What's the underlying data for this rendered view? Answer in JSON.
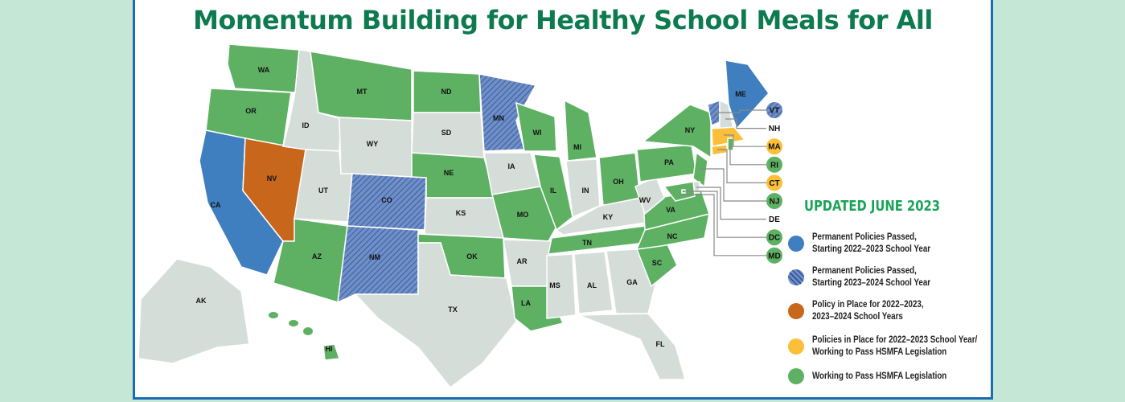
{
  "title": "Momentum Building for Healthy School Meals for All",
  "updated": "UPDATED JUNE 2023",
  "colors": {
    "blue": "#3f7ebf",
    "blue_hatched": "#6f8fc9",
    "orange": "#c8661c",
    "yellow": "#fbbf3a",
    "green": "#5eb163",
    "none": "#d5ddd9",
    "frame": "#1a6cb3",
    "title": "#0d7a4f"
  },
  "legend": [
    {
      "status": "blue",
      "label": "Permanent Policies Passed,\nStarting 2022–2023 School Year"
    },
    {
      "status": "blue_hatched",
      "label": "Permanent Policies Passed,\nStarting 2023–2024 School Year"
    },
    {
      "status": "orange",
      "label": "Policy in Place for 2022–2023,\n2023–2024 School Years"
    },
    {
      "status": "yellow",
      "label": "Policies in Place for 2022–2023 School Year/\nWorking to Pass HSMFA Legislation"
    },
    {
      "status": "green",
      "label": "Working to Pass HSMFA Legislation"
    }
  ],
  "states": [
    {
      "abbr": "WA",
      "status": "green"
    },
    {
      "abbr": "OR",
      "status": "green"
    },
    {
      "abbr": "CA",
      "status": "blue"
    },
    {
      "abbr": "NV",
      "status": "orange"
    },
    {
      "abbr": "ID",
      "status": "none"
    },
    {
      "abbr": "MT",
      "status": "green"
    },
    {
      "abbr": "WY",
      "status": "none"
    },
    {
      "abbr": "UT",
      "status": "none"
    },
    {
      "abbr": "CO",
      "status": "blue_hatched"
    },
    {
      "abbr": "AZ",
      "status": "green"
    },
    {
      "abbr": "NM",
      "status": "blue_hatched"
    },
    {
      "abbr": "ND",
      "status": "green"
    },
    {
      "abbr": "SD",
      "status": "none"
    },
    {
      "abbr": "NE",
      "status": "green"
    },
    {
      "abbr": "KS",
      "status": "none"
    },
    {
      "abbr": "OK",
      "status": "green"
    },
    {
      "abbr": "TX",
      "status": "none"
    },
    {
      "abbr": "MN",
      "status": "blue_hatched"
    },
    {
      "abbr": "IA",
      "status": "none"
    },
    {
      "abbr": "MO",
      "status": "green"
    },
    {
      "abbr": "AR",
      "status": "none"
    },
    {
      "abbr": "LA",
      "status": "green"
    },
    {
      "abbr": "WI",
      "status": "green"
    },
    {
      "abbr": "IL",
      "status": "green"
    },
    {
      "abbr": "MI",
      "status": "green"
    },
    {
      "abbr": "IN",
      "status": "none"
    },
    {
      "abbr": "OH",
      "status": "green"
    },
    {
      "abbr": "KY",
      "status": "none"
    },
    {
      "abbr": "TN",
      "status": "green"
    },
    {
      "abbr": "MS",
      "status": "none"
    },
    {
      "abbr": "AL",
      "status": "none"
    },
    {
      "abbr": "GA",
      "status": "none"
    },
    {
      "abbr": "FL",
      "status": "none"
    },
    {
      "abbr": "SC",
      "status": "green"
    },
    {
      "abbr": "NC",
      "status": "green"
    },
    {
      "abbr": "VA",
      "status": "green"
    },
    {
      "abbr": "WV",
      "status": "none"
    },
    {
      "abbr": "PA",
      "status": "green"
    },
    {
      "abbr": "NY",
      "status": "green"
    },
    {
      "abbr": "NJ",
      "status": "green"
    },
    {
      "abbr": "DE",
      "status": "none"
    },
    {
      "abbr": "MD",
      "status": "green"
    },
    {
      "abbr": "DC",
      "status": "green"
    },
    {
      "abbr": "ME",
      "status": "blue"
    },
    {
      "abbr": "VT",
      "status": "blue_hatched"
    },
    {
      "abbr": "NH",
      "status": "none"
    },
    {
      "abbr": "MA",
      "status": "yellow"
    },
    {
      "abbr": "CT",
      "status": "yellow"
    },
    {
      "abbr": "RI",
      "status": "green"
    },
    {
      "abbr": "AK",
      "status": "none"
    },
    {
      "abbr": "HI",
      "status": "green"
    }
  ],
  "callouts": [
    "VT",
    "NH",
    "MA",
    "RI",
    "CT",
    "NJ",
    "DE",
    "DC",
    "MD"
  ]
}
